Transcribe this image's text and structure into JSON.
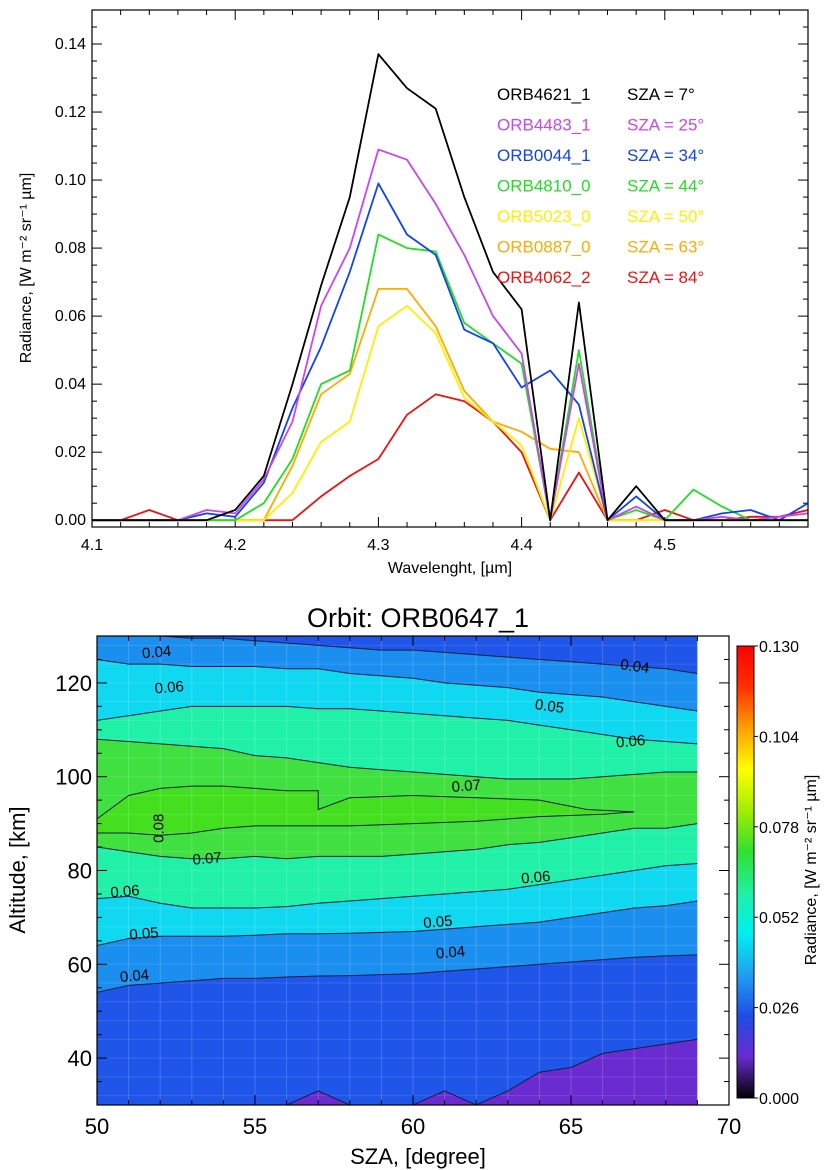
{
  "chart_data": [
    {
      "type": "line",
      "title": "",
      "xlabel": "Wavelenght, [µm]",
      "ylabel": "Radiance, [W m⁻² sr⁻¹ µm]",
      "xlim": [
        4.1,
        4.6
      ],
      "ylim": [
        -0.002,
        0.15
      ],
      "x_ticks": [
        "4.1",
        "4.2",
        "4.3",
        "4.4",
        "4.5"
      ],
      "y_ticks": [
        "0.00",
        "0.02",
        "0.04",
        "0.06",
        "0.08",
        "0.10",
        "0.12",
        "0.14"
      ],
      "legend_position": "top-right",
      "x": [
        4.1,
        4.12,
        4.14,
        4.16,
        4.18,
        4.2,
        4.22,
        4.24,
        4.26,
        4.28,
        4.3,
        4.32,
        4.34,
        4.36,
        4.38,
        4.4,
        4.42,
        4.44,
        4.46,
        4.48,
        4.5,
        4.52,
        4.54,
        4.56,
        4.58,
        4.6
      ],
      "series": [
        {
          "name": "ORB4621_1",
          "sza_label": "SZA = 7°",
          "color": "#000000",
          "values": [
            0.0,
            0.0,
            0.0,
            0.0,
            0.0,
            0.003,
            0.013,
            0.04,
            0.069,
            0.095,
            0.137,
            0.127,
            0.121,
            0.095,
            0.073,
            0.062,
            0.0,
            0.064,
            0.0,
            0.01,
            0.0,
            0.0,
            0.0,
            0.0,
            0.0,
            0.0
          ]
        },
        {
          "name": "ORB4483_1",
          "sza_label": "SZA = 25°",
          "color": "#cc44ee",
          "values": [
            0.0,
            0.0,
            0.0,
            0.0,
            0.003,
            0.002,
            0.012,
            0.029,
            0.063,
            0.08,
            0.109,
            0.106,
            0.093,
            0.078,
            0.06,
            0.049,
            0.0,
            0.046,
            0.0,
            0.004,
            0.0,
            0.0,
            0.001,
            0.0,
            0.001,
            0.002
          ]
        },
        {
          "name": "ORB0044_1",
          "sza_label": "SZA = 34°",
          "color": "#1144ee",
          "values": [
            0.0,
            0.0,
            0.0,
            0.0,
            0.002,
            0.001,
            0.011,
            0.033,
            0.051,
            0.073,
            0.099,
            0.084,
            0.078,
            0.056,
            0.052,
            0.039,
            0.044,
            0.034,
            0.0,
            0.007,
            0.0,
            0.0,
            0.002,
            0.003,
            0.0,
            0.005
          ]
        },
        {
          "name": "ORB4810_0",
          "sza_label": "SZA = 44°",
          "color": "#22dd22",
          "values": [
            0.0,
            0.0,
            0.0,
            0.0,
            0.0,
            0.0,
            0.005,
            0.018,
            0.04,
            0.044,
            0.084,
            0.08,
            0.079,
            0.058,
            0.052,
            0.046,
            0.0,
            0.05,
            0.0,
            0.003,
            0.0,
            0.009,
            0.004,
            0.0,
            0.0,
            0.0
          ]
        },
        {
          "name": "ORB5023_0",
          "sza_label": "SZA = 50°",
          "color": "#ffee00",
          "values": [
            0.0,
            0.0,
            0.0,
            0.0,
            0.0,
            0.0,
            0.0,
            0.008,
            0.023,
            0.029,
            0.057,
            0.063,
            0.055,
            0.036,
            0.029,
            0.022,
            0.0,
            0.03,
            0.0,
            0.0,
            0.0,
            0.0,
            0.0,
            0.0,
            0.0,
            0.0
          ]
        },
        {
          "name": "ORB0887_0",
          "sza_label": "SZA = 63°",
          "color": "#ffaa00",
          "values": [
            0.0,
            0.0,
            0.0,
            0.0,
            0.0,
            0.0,
            0.0,
            0.016,
            0.037,
            0.043,
            0.068,
            0.068,
            0.057,
            0.038,
            0.029,
            0.026,
            0.021,
            0.02,
            0.0,
            0.0,
            0.0,
            0.0,
            0.0,
            0.0,
            0.0,
            0.0
          ]
        },
        {
          "name": "ORB4062_2",
          "sza_label": "SZA = 84°",
          "color": "#ee1111",
          "values": [
            0.0,
            0.0,
            0.003,
            0.0,
            0.0,
            0.0,
            0.0,
            0.0,
            0.007,
            0.013,
            0.018,
            0.031,
            0.037,
            0.035,
            0.029,
            0.02,
            0.0,
            0.014,
            0.0,
            0.0,
            0.003,
            0.0,
            0.0,
            0.001,
            0.001,
            0.003
          ]
        }
      ]
    },
    {
      "type": "heatmap",
      "title": "Orbit: ORB0647_1",
      "xlabel": "SZA, [degree]",
      "ylabel": "Altitude, [km]",
      "xlim": [
        50,
        70
      ],
      "ylim": [
        30,
        130
      ],
      "data_x_range": [
        50,
        69
      ],
      "x_ticks": [
        "50",
        "55",
        "60",
        "65",
        "70"
      ],
      "y_ticks": [
        "40",
        "60",
        "80",
        "100",
        "120"
      ],
      "colorbar": {
        "label": "Radiance, [W m⁻² sr⁻¹ µm]",
        "range": [
          0.0,
          0.13
        ],
        "ticks": [
          "0.000",
          "0.026",
          "0.052",
          "0.078",
          "0.104",
          "0.130"
        ],
        "colors": [
          "#000000",
          "#6a2bd0",
          "#1f4de6",
          "#1ea0f0",
          "#00f0f0",
          "#20f0a0",
          "#30e030",
          "#a0ee00",
          "#ffff00",
          "#ffa000",
          "#ff3000",
          "#ff0000"
        ]
      },
      "contour_levels": [
        0.04,
        0.05,
        0.06,
        0.07,
        0.08
      ],
      "level_colors": {
        "below_0.03": "#6a2bd0",
        "0.03-0.04": "#1f55e8",
        "0.04-0.05": "#1a8ff0",
        "0.05-0.06": "#10d8f0",
        "0.06-0.07": "#20f0a8",
        "0.07-0.08": "#40e040"
      },
      "contour_labels": [
        {
          "text": "0.04",
          "sza": 51.9,
          "alt": 125.5
        },
        {
          "text": "0.04",
          "sza": 67.0,
          "alt": 122.5
        },
        {
          "text": "0.06",
          "sza": 52.3,
          "alt": 118.0
        },
        {
          "text": "0.05",
          "sza": 64.3,
          "alt": 114.0
        },
        {
          "text": "0.06",
          "sza": 66.9,
          "alt": 106.5
        },
        {
          "text": "0.07",
          "sza": 61.7,
          "alt": 97.0
        },
        {
          "text": "0.08",
          "sza": 52.1,
          "alt": 89.0
        },
        {
          "text": "0.07",
          "sza": 53.5,
          "alt": 81.5
        },
        {
          "text": "0.06",
          "sza": 63.9,
          "alt": 77.5
        },
        {
          "text": "0.06",
          "sza": 50.9,
          "alt": 74.5
        },
        {
          "text": "0.05",
          "sza": 51.5,
          "alt": 65.5
        },
        {
          "text": "0.05",
          "sza": 60.8,
          "alt": 68.0
        },
        {
          "text": "0.04",
          "sza": 61.2,
          "alt": 61.5
        },
        {
          "text": "0.04",
          "sza": 51.2,
          "alt": 56.5
        }
      ]
    }
  ]
}
